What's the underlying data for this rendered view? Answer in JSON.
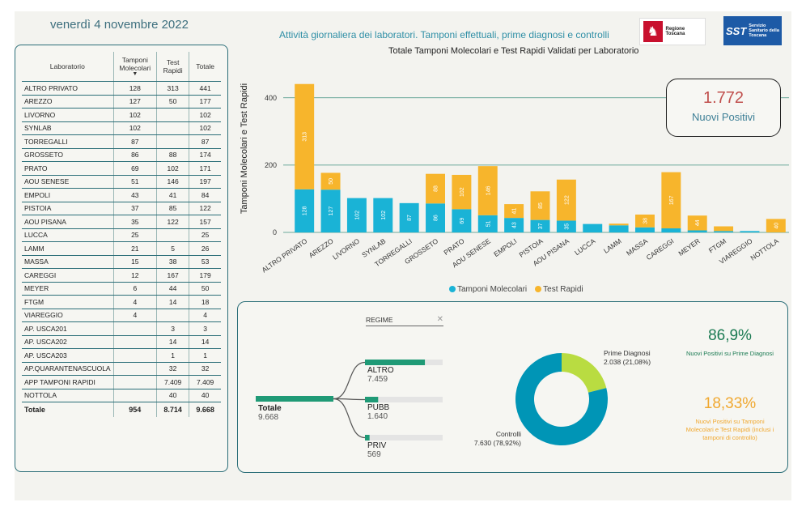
{
  "date": "venerdì 4 novembre 2022",
  "header_title": "Attività giornaliera dei laboratori. Tamponi effettuali, prime diagnosi e controlli",
  "logos": {
    "regione": "Regione Toscana",
    "sst": "SST",
    "sst_sub": "Servizio Sanitario della Toscana"
  },
  "table": {
    "headers": [
      "Laboratorio",
      "Tamponi Molecolari",
      "Test Rapidi",
      "Totale"
    ],
    "rows": [
      {
        "lab": "ALTRO PRIVATO",
        "mol": "128",
        "rap": "313",
        "tot": "441"
      },
      {
        "lab": "AREZZO",
        "mol": "127",
        "rap": "50",
        "tot": "177"
      },
      {
        "lab": "LIVORNO",
        "mol": "102",
        "rap": "",
        "tot": "102"
      },
      {
        "lab": "SYNLAB",
        "mol": "102",
        "rap": "",
        "tot": "102"
      },
      {
        "lab": "TORREGALLI",
        "mol": "87",
        "rap": "",
        "tot": "87"
      },
      {
        "lab": "GROSSETO",
        "mol": "86",
        "rap": "88",
        "tot": "174"
      },
      {
        "lab": "PRATO",
        "mol": "69",
        "rap": "102",
        "tot": "171"
      },
      {
        "lab": "AOU SENESE",
        "mol": "51",
        "rap": "146",
        "tot": "197"
      },
      {
        "lab": "EMPOLI",
        "mol": "43",
        "rap": "41",
        "tot": "84"
      },
      {
        "lab": "PISTOIA",
        "mol": "37",
        "rap": "85",
        "tot": "122"
      },
      {
        "lab": "AOU PISANA",
        "mol": "35",
        "rap": "122",
        "tot": "157"
      },
      {
        "lab": "LUCCA",
        "mol": "25",
        "rap": "",
        "tot": "25"
      },
      {
        "lab": "LAMM",
        "mol": "21",
        "rap": "5",
        "tot": "26"
      },
      {
        "lab": "MASSA",
        "mol": "15",
        "rap": "38",
        "tot": "53"
      },
      {
        "lab": "CAREGGI",
        "mol": "12",
        "rap": "167",
        "tot": "179"
      },
      {
        "lab": "MEYER",
        "mol": "6",
        "rap": "44",
        "tot": "50"
      },
      {
        "lab": "FTGM",
        "mol": "4",
        "rap": "14",
        "tot": "18"
      },
      {
        "lab": "VIAREGGIO",
        "mol": "4",
        "rap": "",
        "tot": "4"
      },
      {
        "lab": "AP. USCA201",
        "mol": "",
        "rap": "3",
        "tot": "3"
      },
      {
        "lab": "AP. USCA202",
        "mol": "",
        "rap": "14",
        "tot": "14"
      },
      {
        "lab": "AP. USCA203",
        "mol": "",
        "rap": "1",
        "tot": "1"
      },
      {
        "lab": "AP.QUARANTENASCUOLA",
        "mol": "",
        "rap": "32",
        "tot": "32"
      },
      {
        "lab": "APP TAMPONI RAPIDI",
        "mol": "",
        "rap": "7.409",
        "tot": "7.409"
      },
      {
        "lab": "NOTTOLA",
        "mol": "",
        "rap": "40",
        "tot": "40"
      }
    ],
    "total": {
      "lab": "Totale",
      "mol": "954",
      "rap": "8.714",
      "tot": "9.668"
    }
  },
  "kpi": {
    "value": "1.772",
    "label": "Nuovi Positivi"
  },
  "chart_data": [
    {
      "type": "bar",
      "title": "Totale Tamponi Molecolari e Test Rapidi Validati per Laboratorio",
      "ylabel": "Tamponi Molecolari e Test Rapidi",
      "ylim": [
        0,
        450
      ],
      "yticks": [
        "0",
        "200",
        "400"
      ],
      "stacked": true,
      "categories": [
        "ALTRO PRIVATO",
        "AREZZO",
        "LIVORNO",
        "SYNLAB",
        "TORREGALLI",
        "GROSSETO",
        "PRATO",
        "AOU SENESE",
        "EMPOLI",
        "PISTOIA",
        "AOU PISANA",
        "LUCCA",
        "LAMM",
        "MASSA",
        "CAREGGI",
        "MEYER",
        "FTGM",
        "VIAREGGIO",
        "NOTTOLA"
      ],
      "series": [
        {
          "name": "Tamponi Molecolari",
          "color": "#1ab3d6",
          "values": [
            128,
            127,
            102,
            102,
            87,
            86,
            69,
            51,
            43,
            37,
            35,
            25,
            21,
            15,
            12,
            6,
            4,
            4,
            0
          ]
        },
        {
          "name": "Test Rapidi",
          "color": "#f7b52c",
          "values": [
            313,
            50,
            0,
            0,
            0,
            88,
            102,
            146,
            41,
            85,
            122,
            0,
            5,
            38,
            167,
            44,
            14,
            0,
            40
          ]
        }
      ],
      "legend_position": "bottom",
      "grid": true
    },
    {
      "type": "bar",
      "title": "REGIME",
      "root": {
        "label": "Totale",
        "value": "9.668",
        "numeric": 9668
      },
      "categories": [
        "ALTRO",
        "PUBB",
        "PRIV"
      ],
      "values": [
        7459,
        1640,
        569
      ],
      "value_labels": [
        "7.459",
        "1.640",
        "569"
      ],
      "color": "#1f9a76"
    },
    {
      "type": "pie",
      "donut": true,
      "slices": [
        {
          "label": "Controlli",
          "value": 7630,
          "text": "7.630 (78,92%)",
          "color": "#0095b6"
        },
        {
          "label": "Prime Diagnosi",
          "value": 2038,
          "text": "2.038 (21,08%)",
          "color": "#b9dc41"
        }
      ]
    }
  ],
  "stats": [
    {
      "value": "86,9%",
      "label": "Nuovi Positivi su Prime Diagnosi",
      "color": "#1a7a52"
    },
    {
      "value": "18,33%",
      "label": "Nuovi Positivi su Tamponi Molecolari e Test Rapidi (inclusi i tamponi di controllo)",
      "color": "#f0a830"
    }
  ]
}
